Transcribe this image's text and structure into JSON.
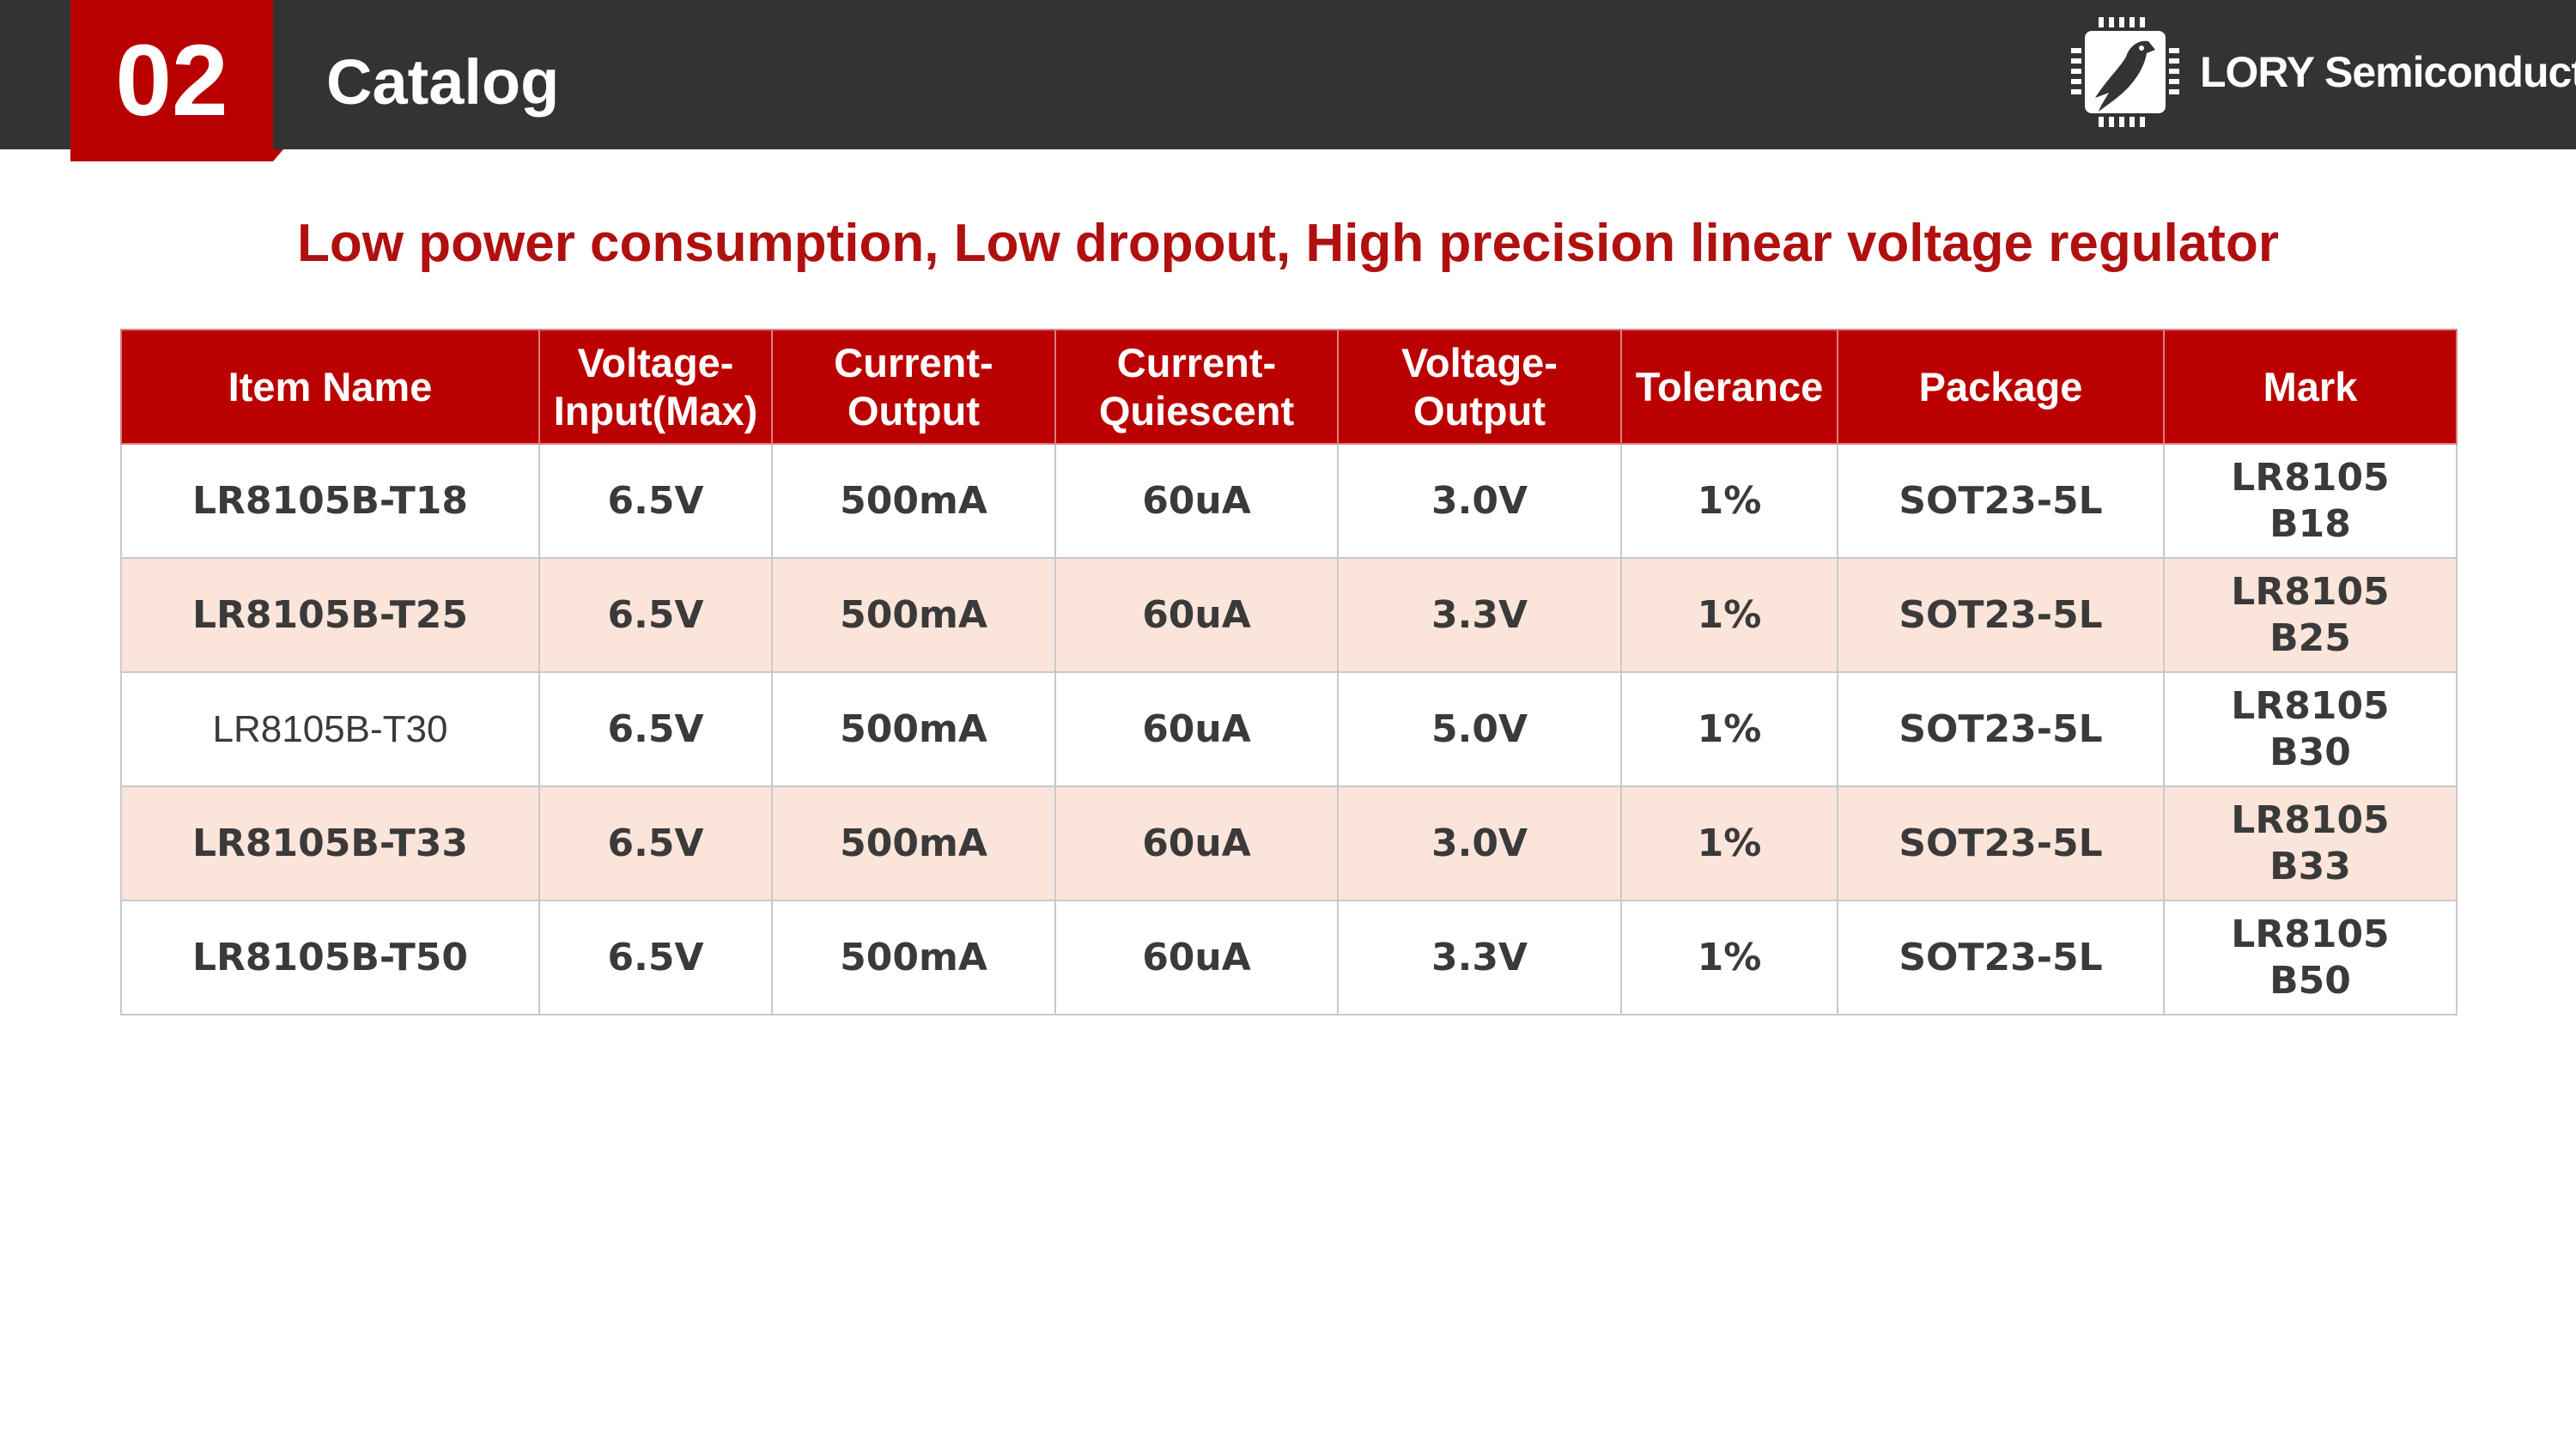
{
  "header": {
    "section_number": "02",
    "section_title": "Catalog",
    "logo_text": "LORY Semiconductor",
    "logo_icon": "chip-bird-icon",
    "bar_color": "#333333",
    "accent_color": "#b80000"
  },
  "subtitle": "Low power consumption, Low dropout, High precision linear voltage regulator",
  "table": {
    "header_color": "#bb0000",
    "alt_row_color": "#fbe4d9",
    "columns": [
      "Item Name",
      "Voltage-\nInput(Max)",
      "Current-\nOutput",
      "Current-\nQuiescent",
      "Voltage-\nOutput",
      "Tolerance",
      "Package",
      "Mark"
    ],
    "rows": [
      {
        "item_name": "LR8105B-T18",
        "voltage_input_max": "6.5V",
        "current_output": "500mA",
        "current_quiescent": "60uA",
        "voltage_output": "3.0V",
        "tolerance": "1%",
        "package": "SOT23-5L",
        "mark_line1": "LR8105",
        "mark_line2": "B18"
      },
      {
        "item_name": "LR8105B-T25",
        "voltage_input_max": "6.5V",
        "current_output": "500mA",
        "current_quiescent": "60uA",
        "voltage_output": "3.3V",
        "tolerance": "1%",
        "package": "SOT23-5L",
        "mark_line1": "LR8105",
        "mark_line2": "B25"
      },
      {
        "item_name": "LR8105B-T30",
        "voltage_input_max": "6.5V",
        "current_output": "500mA",
        "current_quiescent": "60uA",
        "voltage_output": "5.0V",
        "tolerance": "1%",
        "package": "SOT23-5L",
        "mark_line1": "LR8105",
        "mark_line2": "B30"
      },
      {
        "item_name": "LR8105B-T33",
        "voltage_input_max": "6.5V",
        "current_output": "500mA",
        "current_quiescent": "60uA",
        "voltage_output": "3.0V",
        "tolerance": "1%",
        "package": "SOT23-5L",
        "mark_line1": "LR8105",
        "mark_line2": "B33"
      },
      {
        "item_name": "LR8105B-T50",
        "voltage_input_max": "6.5V",
        "current_output": "500mA",
        "current_quiescent": "60uA",
        "voltage_output": "3.3V",
        "tolerance": "1%",
        "package": "SOT23-5L",
        "mark_line1": "LR8105",
        "mark_line2": "B50"
      }
    ]
  }
}
